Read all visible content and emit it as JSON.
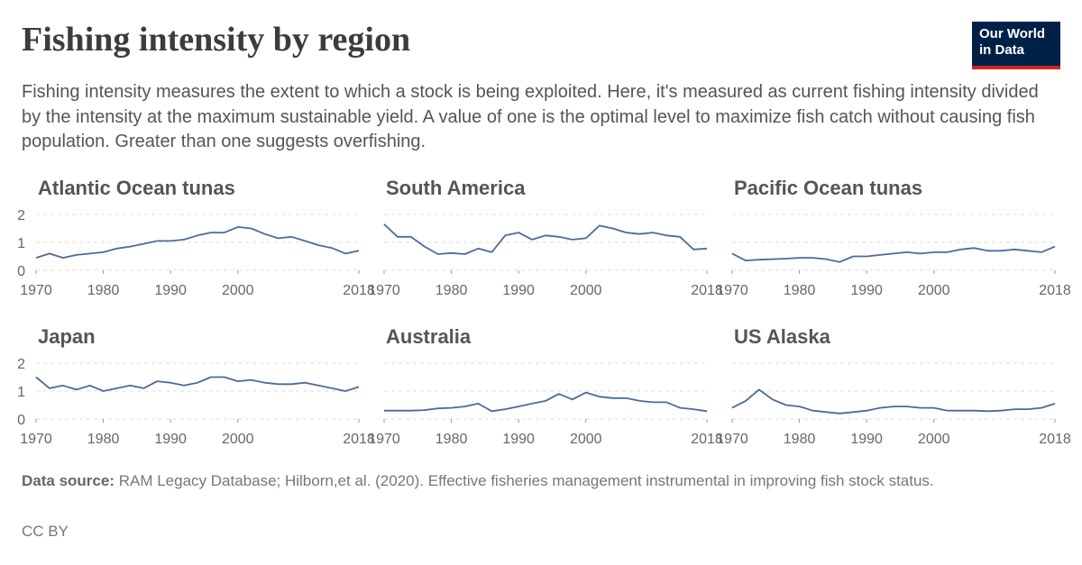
{
  "header": {
    "title": "Fishing intensity by region",
    "subtitle": "Fishing intensity measures the extent to which a stock is being exploited. Here, it's measured as current fishing intensity divided by the intensity at the maximum sustainable yield. A value of one is the optimal level to maximize fish catch without causing fish population. Greater than one suggests overfishing.",
    "logo": [
      "Our World",
      "in Data"
    ]
  },
  "footer": {
    "source_label": "Data source:",
    "source": "RAM Legacy Database; Hilborn,et al. (2020). Effective fisheries management instrumental in improving fish stock status.",
    "license": "CC BY"
  },
  "chart_data": [
    {
      "type": "line",
      "title": "Atlantic Ocean tunas",
      "color": "#4c6a9c",
      "grid": true,
      "x": [
        1970,
        1972,
        1974,
        1976,
        1978,
        1980,
        1982,
        1984,
        1986,
        1988,
        1990,
        1992,
        1994,
        1996,
        1998,
        2000,
        2002,
        2004,
        2006,
        2008,
        2010,
        2012,
        2014,
        2016,
        2018
      ],
      "values": [
        0.45,
        0.6,
        0.45,
        0.55,
        0.6,
        0.65,
        0.78,
        0.85,
        0.95,
        1.05,
        1.05,
        1.1,
        1.25,
        1.35,
        1.35,
        1.55,
        1.5,
        1.3,
        1.15,
        1.2,
        1.05,
        0.9,
        0.8,
        0.6,
        0.7
      ],
      "xlim": [
        1970,
        2018
      ],
      "xticks": [
        1970,
        1980,
        1990,
        2000,
        2018
      ],
      "ylim": [
        0,
        2
      ],
      "yticks": [
        0,
        1,
        2
      ]
    },
    {
      "type": "line",
      "title": "South America",
      "color": "#4c6a9c",
      "grid": true,
      "x": [
        1970,
        1972,
        1974,
        1976,
        1978,
        1980,
        1982,
        1984,
        1986,
        1988,
        1990,
        1992,
        1994,
        1996,
        1998,
        2000,
        2002,
        2004,
        2006,
        2008,
        2010,
        2012,
        2014,
        2016,
        2018
      ],
      "values": [
        1.65,
        1.2,
        1.2,
        0.85,
        0.58,
        0.62,
        0.58,
        0.78,
        0.65,
        1.25,
        1.35,
        1.1,
        1.25,
        1.2,
        1.1,
        1.15,
        1.6,
        1.5,
        1.35,
        1.3,
        1.35,
        1.25,
        1.2,
        0.75,
        0.78
      ],
      "xlim": [
        1970,
        2018
      ],
      "xticks": [
        1970,
        1980,
        1990,
        2000,
        2018
      ],
      "ylim": [
        0,
        2
      ],
      "yticks": [
        0,
        1,
        2
      ]
    },
    {
      "type": "line",
      "title": "Pacific Ocean tunas",
      "color": "#4c6a9c",
      "grid": true,
      "x": [
        1970,
        1972,
        1974,
        1976,
        1978,
        1980,
        1982,
        1984,
        1986,
        1988,
        1990,
        1992,
        1994,
        1996,
        1998,
        2000,
        2002,
        2004,
        2006,
        2008,
        2010,
        2012,
        2014,
        2016,
        2018
      ],
      "values": [
        0.6,
        0.35,
        0.38,
        0.4,
        0.42,
        0.45,
        0.45,
        0.4,
        0.3,
        0.5,
        0.5,
        0.55,
        0.6,
        0.65,
        0.6,
        0.65,
        0.65,
        0.75,
        0.8,
        0.7,
        0.7,
        0.75,
        0.7,
        0.65,
        0.85
      ],
      "xlim": [
        1970,
        2018
      ],
      "xticks": [
        1970,
        1980,
        1990,
        2000,
        2018
      ],
      "ylim": [
        0,
        2
      ],
      "yticks": [
        0,
        1,
        2
      ]
    },
    {
      "type": "line",
      "title": "Japan",
      "color": "#4c6a9c",
      "grid": true,
      "x": [
        1970,
        1972,
        1974,
        1976,
        1978,
        1980,
        1982,
        1984,
        1986,
        1988,
        1990,
        1992,
        1994,
        1996,
        1998,
        2000,
        2002,
        2004,
        2006,
        2008,
        2010,
        2012,
        2014,
        2016,
        2018
      ],
      "values": [
        1.5,
        1.1,
        1.2,
        1.05,
        1.2,
        1.0,
        1.1,
        1.2,
        1.1,
        1.35,
        1.3,
        1.2,
        1.3,
        1.5,
        1.5,
        1.35,
        1.4,
        1.3,
        1.25,
        1.25,
        1.3,
        1.2,
        1.1,
        1.0,
        1.15
      ],
      "xlim": [
        1970,
        2018
      ],
      "xticks": [
        1970,
        1980,
        1990,
        2000,
        2018
      ],
      "ylim": [
        0,
        2
      ],
      "yticks": [
        0,
        1,
        2
      ]
    },
    {
      "type": "line",
      "title": "Australia",
      "color": "#4c6a9c",
      "grid": true,
      "x": [
        1970,
        1972,
        1974,
        1976,
        1978,
        1980,
        1982,
        1984,
        1986,
        1988,
        1990,
        1992,
        1994,
        1996,
        1998,
        2000,
        2002,
        2004,
        2006,
        2008,
        2010,
        2012,
        2014,
        2016,
        2018
      ],
      "values": [
        0.3,
        0.3,
        0.3,
        0.32,
        0.38,
        0.4,
        0.45,
        0.55,
        0.28,
        0.35,
        0.45,
        0.55,
        0.65,
        0.9,
        0.7,
        0.95,
        0.8,
        0.75,
        0.75,
        0.65,
        0.6,
        0.6,
        0.4,
        0.35,
        0.28
      ],
      "xlim": [
        1970,
        2018
      ],
      "xticks": [
        1970,
        1980,
        1990,
        2000,
        2018
      ],
      "ylim": [
        0,
        2
      ],
      "yticks": [
        0,
        1,
        2
      ]
    },
    {
      "type": "line",
      "title": "US Alaska",
      "color": "#4c6a9c",
      "grid": true,
      "x": [
        1970,
        1972,
        1974,
        1976,
        1978,
        1980,
        1982,
        1984,
        1986,
        1988,
        1990,
        1992,
        1994,
        1996,
        1998,
        2000,
        2002,
        2004,
        2006,
        2008,
        2010,
        2012,
        2014,
        2016,
        2018
      ],
      "values": [
        0.4,
        0.65,
        1.05,
        0.7,
        0.5,
        0.45,
        0.3,
        0.25,
        0.2,
        0.25,
        0.3,
        0.4,
        0.45,
        0.45,
        0.4,
        0.4,
        0.3,
        0.3,
        0.3,
        0.28,
        0.3,
        0.35,
        0.35,
        0.4,
        0.55
      ],
      "xlim": [
        1970,
        2018
      ],
      "xticks": [
        1970,
        1980,
        1990,
        2000,
        2018
      ],
      "ylim": [
        0,
        2
      ],
      "yticks": [
        0,
        1,
        2
      ]
    }
  ]
}
